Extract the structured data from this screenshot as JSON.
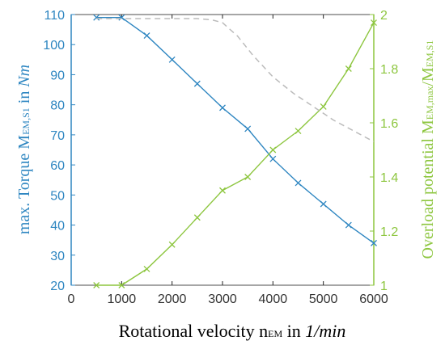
{
  "chart_data": {
    "type": "line",
    "title": "",
    "xlabel": {
      "main": "Rotational velocity n",
      "sub": "EM",
      "mid": " in ",
      "unit": "1/min"
    },
    "ylabel_left": {
      "main": "max. Torque M",
      "sub": "EM,S1",
      "mid": " in ",
      "unit": "Nm"
    },
    "ylabel_right": {
      "main": "Overload potential M",
      "sub1": "EM,max",
      "slash": "/M",
      "sub2": "EM,S1"
    },
    "x_ticks": [
      "0",
      "1000",
      "2000",
      "3000",
      "4000",
      "5000",
      "6000"
    ],
    "y_left_ticks": [
      "20",
      "30",
      "40",
      "50",
      "60",
      "70",
      "80",
      "90",
      "100",
      "110"
    ],
    "y_right_ticks": [
      "1",
      "1.2",
      "1.4",
      "1.6",
      "1.8",
      "2"
    ],
    "xlim": [
      0,
      6000
    ],
    "ylim_left": [
      20,
      110
    ],
    "ylim_right": [
      1,
      2
    ],
    "grid": false,
    "colors": {
      "torque": "#2e86c1",
      "overload": "#8dc63f",
      "dashed": "#bbbbbb",
      "left_axis": "#2e86c1",
      "right_axis": "#8dc63f",
      "frame": "#222222"
    },
    "series": [
      {
        "axis": "left",
        "style": "solid-x-marker",
        "x": [
          500,
          1000,
          1500,
          2000,
          2500,
          3000,
          3500,
          4000,
          4500,
          5000,
          5500,
          6000
        ],
        "values": [
          109,
          109,
          103,
          95,
          87,
          79,
          72,
          62,
          54,
          47,
          40,
          34
        ]
      },
      {
        "axis": "right",
        "style": "solid-x-marker",
        "x": [
          500,
          1000,
          1500,
          2000,
          2500,
          3000,
          3500,
          4000,
          4500,
          5000,
          5500,
          6000
        ],
        "values": [
          1.0,
          1.0,
          1.06,
          1.15,
          1.25,
          1.35,
          1.4,
          1.5,
          1.57,
          1.66,
          1.8,
          1.97
        ]
      },
      {
        "axis": "right",
        "style": "dashed",
        "x": [
          500,
          1000,
          1500,
          2000,
          2500,
          2800,
          3000,
          3300,
          3600,
          4000,
          4400,
          4800,
          5200,
          5600,
          6000
        ],
        "values": [
          1.985,
          1.985,
          1.985,
          1.985,
          1.985,
          1.98,
          1.97,
          1.92,
          1.85,
          1.77,
          1.71,
          1.66,
          1.61,
          1.57,
          1.53
        ]
      }
    ]
  }
}
